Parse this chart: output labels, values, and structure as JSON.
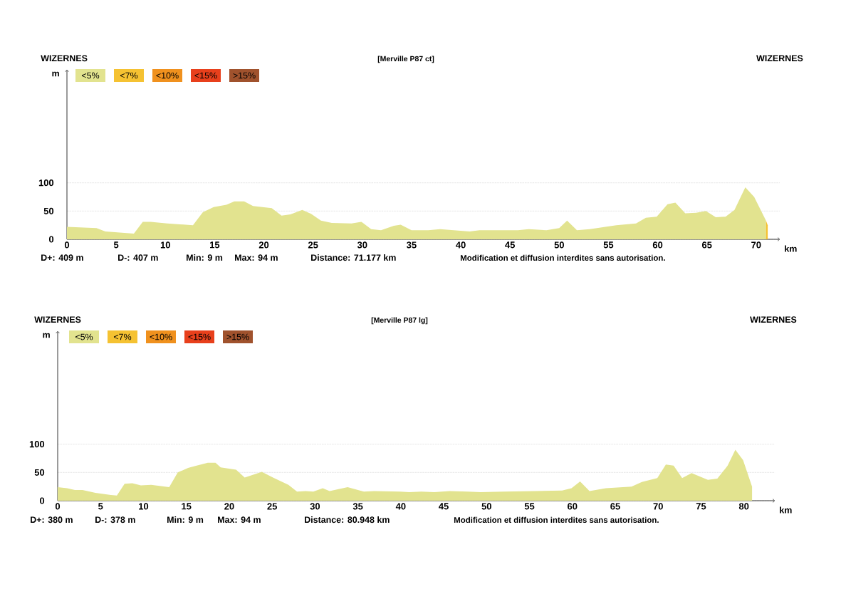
{
  "chart_data": [
    {
      "type": "area",
      "title": "[Merville P87 ct]",
      "xlabel": "km",
      "ylabel": "m",
      "annotations": [
        "WIZERNES",
        "WIZERNES",
        "D+: 409 m",
        "D-: 407 m",
        "Min: 9 m",
        "Max: 94 m",
        "Distance: 71.177 km",
        "Modification et diffusion interdites sans autorisation.",
        "<10%",
        "<15%",
        ">15%"
      ],
      "series": [
        {
          "name": "<5%",
          "color": "#e2e38f",
          "x": [
            0,
            3.0,
            3.9,
            6.8,
            7.7,
            8.5,
            10.2,
            12.8,
            13.8,
            14.9,
            16.2,
            17.0,
            18.0,
            18.9,
            20.8,
            21.8,
            22.7,
            23.9,
            24.8,
            25.8,
            26.9,
            28.9,
            29.9,
            30.9,
            31.9,
            33.2,
            33.9,
            35.0,
            36.7,
            37.9,
            40.9,
            41.9,
            45.8,
            46.9,
            48.7,
            50.0,
            50.8,
            51.8,
            53.1,
            55.8,
            57.8,
            58.8,
            59.9,
            61.0,
            61.8,
            62.8,
            63.9,
            64.9,
            65.9,
            66.9,
            67.8,
            68.9,
            69.8,
            71.0
          ],
          "values": [
            22,
            20,
            14,
            10,
            31,
            31,
            28,
            25,
            48,
            57,
            61,
            67,
            67,
            59,
            55,
            42,
            44,
            52,
            45,
            33,
            29,
            28,
            31,
            18,
            16,
            24,
            26,
            16,
            16,
            18,
            14,
            16,
            16,
            18,
            16,
            20,
            33,
            16,
            18,
            25,
            28,
            38,
            40,
            62,
            65,
            46,
            47,
            50,
            39,
            40,
            52,
            92,
            75,
            33
          ]
        },
        {
          "name": "<7%",
          "color": "#f5c232",
          "x": [
            71.0,
            71.177
          ],
          "values": [
            33,
            25
          ]
        }
      ],
      "xlim": [
        0,
        72.4
      ],
      "ylim": [
        0,
        300
      ],
      "xticks": [
        0,
        5,
        10,
        15,
        20,
        25,
        30,
        35,
        40,
        45,
        50,
        55,
        60,
        65,
        70
      ],
      "yticks": [
        0,
        50,
        100
      ],
      "grid": "y",
      "legend": "top left"
    },
    {
      "type": "area",
      "title": "[Merville P87 lg]",
      "xlabel": "km",
      "ylabel": "m",
      "annotations": [
        "WIZERNES",
        "WIZERNES",
        "D+: 380 m",
        "D-: 378 m",
        "Min: 9 m",
        "Max: 94 m",
        "Distance: 80.948 km",
        "Modification et diffusion interdites sans autorisation.",
        "<7%",
        "<10%",
        "<15%",
        ">15%"
      ],
      "series": [
        {
          "name": "<5%",
          "color": "#e2e38f",
          "x": [
            0,
            1.1,
            2.0,
            2.9,
            4.4,
            6.2,
            6.9,
            7.8,
            8.7,
            9.7,
            10.9,
            13.0,
            14.0,
            15.2,
            16.2,
            17.5,
            18.4,
            19.0,
            20.8,
            21.8,
            23.8,
            25.1,
            26.9,
            27.9,
            28.9,
            29.8,
            30.9,
            31.7,
            33.8,
            35.7,
            36.9,
            39.9,
            41.0,
            42.4,
            43.9,
            45.7,
            47.8,
            49.3,
            52.0,
            55.6,
            58.8,
            59.9,
            60.9,
            62.0,
            63.9,
            66.9,
            68.1,
            69.9,
            70.9,
            71.8,
            72.8,
            73.9,
            75.8,
            76.9,
            78.1,
            79.0,
            79.9,
            80.948
          ],
          "values": [
            24,
            22,
            19,
            19,
            14,
            10,
            9,
            30,
            31,
            27,
            28,
            24,
            50,
            58,
            62,
            67,
            67,
            59,
            55,
            41,
            51,
            41,
            28,
            16,
            17,
            16,
            22,
            17,
            24,
            16,
            17,
            16,
            15,
            16,
            15,
            17,
            16,
            15,
            16,
            17,
            18,
            22,
            34,
            17,
            22,
            25,
            33,
            40,
            64,
            62,
            40,
            49,
            37,
            39,
            62,
            90,
            72,
            25
          ]
        }
      ],
      "xlim": [
        0,
        83.6
      ],
      "ylim": [
        0,
        300
      ],
      "xticks": [
        0,
        5,
        10,
        15,
        20,
        25,
        30,
        35,
        40,
        45,
        50,
        55,
        60,
        65,
        70,
        75,
        80
      ],
      "yticks": [
        0,
        50,
        100
      ],
      "grid": "y",
      "legend": "top left"
    }
  ]
}
